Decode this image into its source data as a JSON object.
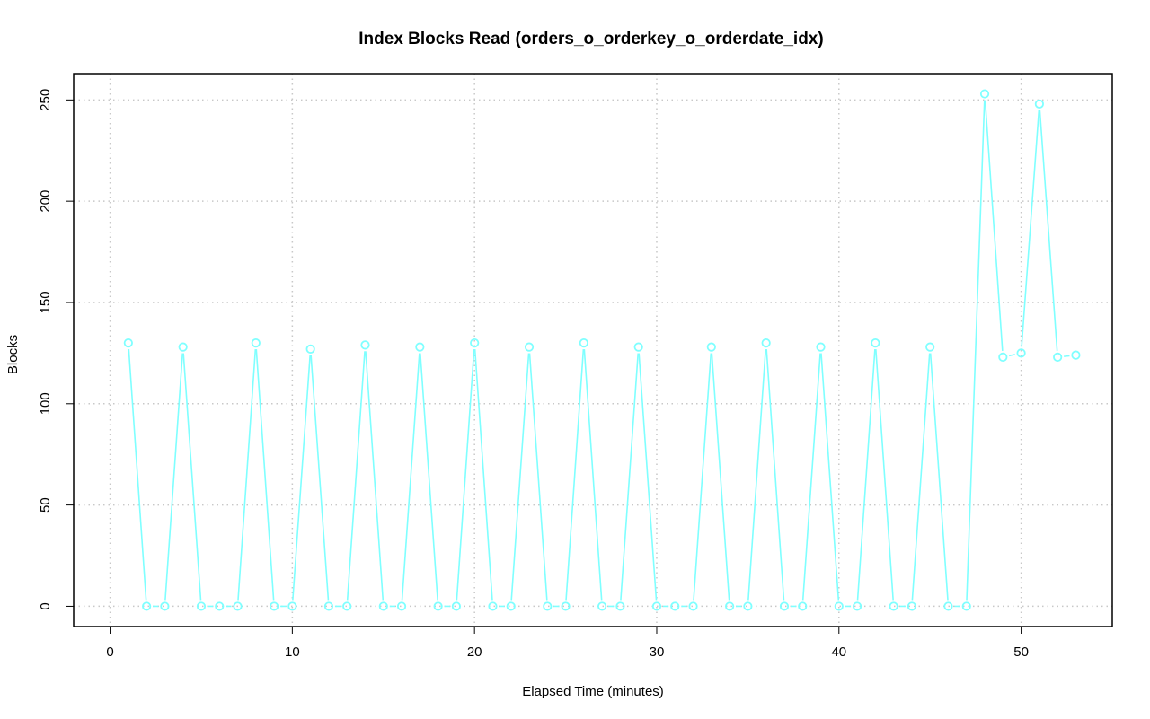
{
  "chart_data": {
    "type": "line",
    "title": "Index Blocks Read (orders_o_orderkey_o_orderdate_idx)",
    "xlabel": "Elapsed Time (minutes)",
    "ylabel": "Blocks",
    "xlim": [
      -2,
      55
    ],
    "ylim": [
      -10,
      263
    ],
    "x_ticks": [
      0,
      10,
      20,
      30,
      40,
      50
    ],
    "y_ticks": [
      0,
      50,
      100,
      150,
      200,
      250
    ],
    "grid": true,
    "grid_color": "#c8c8c8",
    "series": [
      {
        "color": "#7fffff",
        "x": [
          1,
          2,
          3,
          4,
          5,
          6,
          7,
          8,
          9,
          10,
          11,
          12,
          13,
          14,
          15,
          16,
          17,
          18,
          19,
          20,
          21,
          22,
          23,
          24,
          25,
          26,
          27,
          28,
          29,
          30,
          31,
          32,
          33,
          34,
          35,
          36,
          37,
          38,
          39,
          40,
          41,
          42,
          43,
          44,
          45,
          46,
          47,
          48,
          49,
          50,
          51,
          52,
          53
        ],
        "values": [
          130,
          0,
          0,
          128,
          0,
          0,
          0,
          130,
          0,
          0,
          127,
          0,
          0,
          129,
          0,
          0,
          128,
          0,
          0,
          130,
          0,
          0,
          128,
          0,
          0,
          130,
          0,
          0,
          128,
          0,
          0,
          0,
          128,
          0,
          0,
          130,
          0,
          0,
          128,
          0,
          0,
          130,
          0,
          0,
          128,
          0,
          0,
          253,
          123,
          125,
          248,
          123,
          124
        ]
      }
    ]
  }
}
